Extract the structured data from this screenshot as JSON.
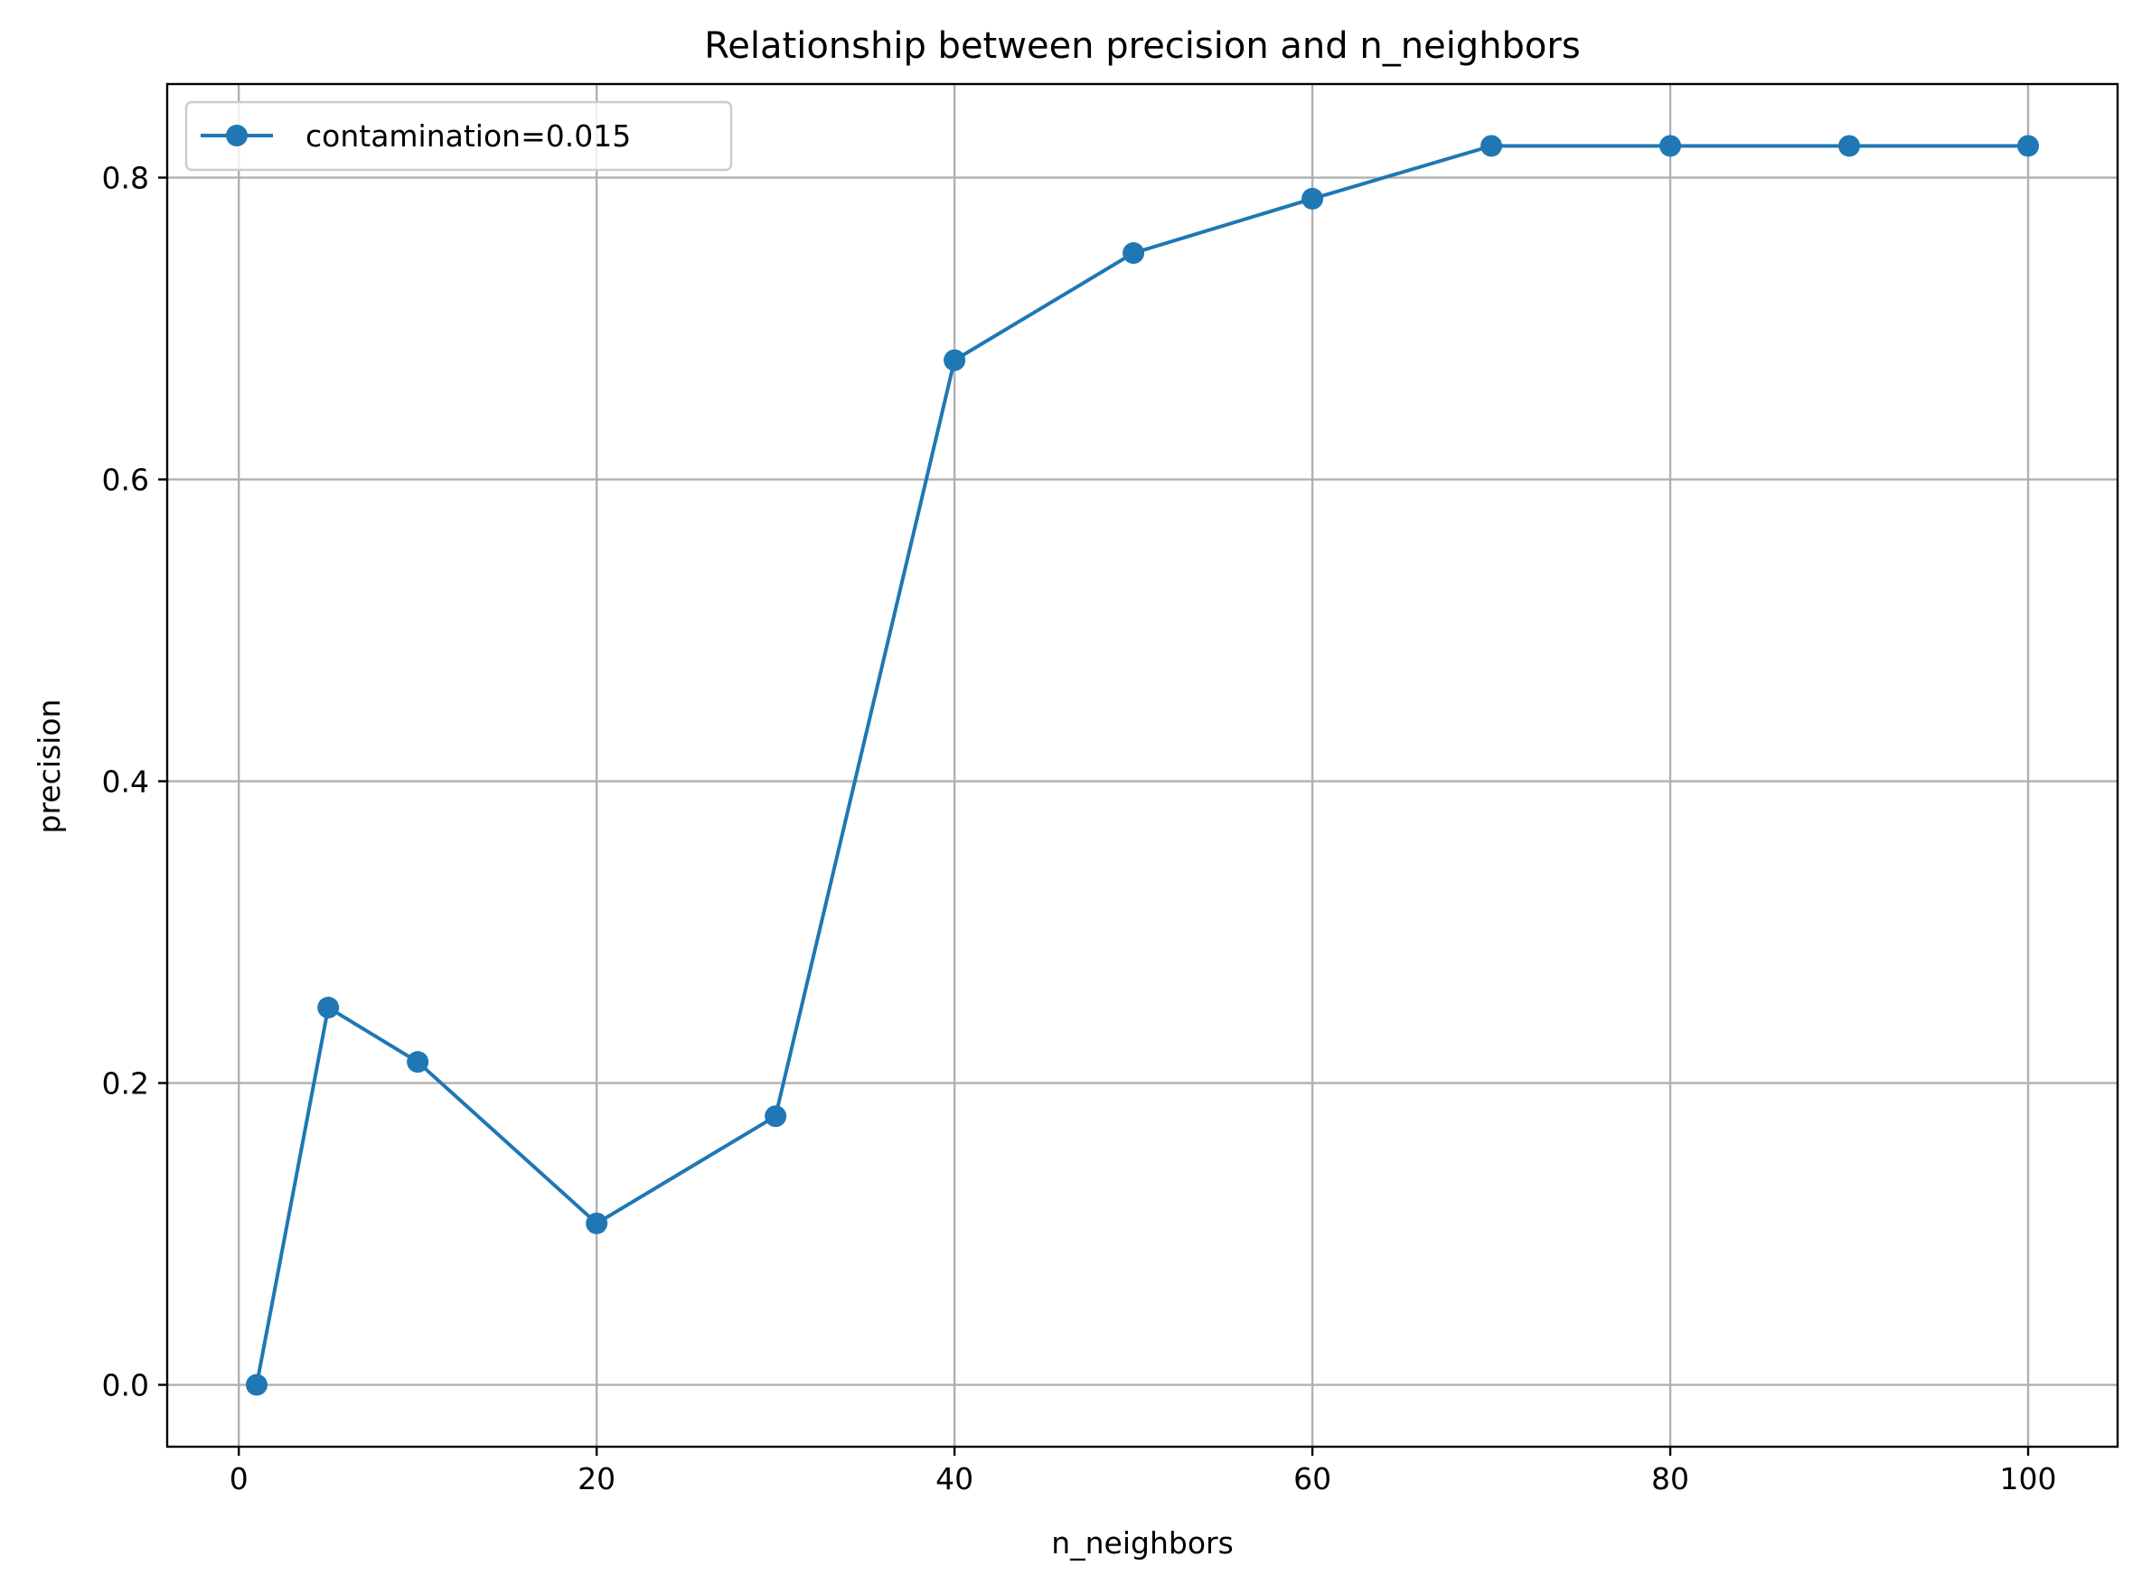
{
  "chart_data": {
    "type": "line",
    "title": "Relationship between precision and n_neighbors",
    "xlabel": "n_neighbors",
    "ylabel": "precision",
    "xlim": [
      -4,
      105
    ],
    "ylim": [
      -0.041,
      0.862
    ],
    "xticks": [
      0,
      20,
      40,
      60,
      80,
      100
    ],
    "yticks": [
      0.0,
      0.2,
      0.4,
      0.6,
      0.8
    ],
    "xtick_labels": [
      "0",
      "20",
      "40",
      "60",
      "80",
      "100"
    ],
    "ytick_labels": [
      "0.0",
      "0.2",
      "0.4",
      "0.6",
      "0.8"
    ],
    "grid": true,
    "legend_position": "top-left",
    "series": [
      {
        "name": "contamination=0.015",
        "color": "#1f77b4",
        "marker": "circle",
        "x": [
          1,
          5,
          10,
          20,
          30,
          40,
          50,
          60,
          70,
          80,
          90,
          100
        ],
        "y": [
          0.0,
          0.25,
          0.214,
          0.107,
          0.178,
          0.679,
          0.75,
          0.786,
          0.821,
          0.821,
          0.821,
          0.821
        ]
      }
    ]
  }
}
